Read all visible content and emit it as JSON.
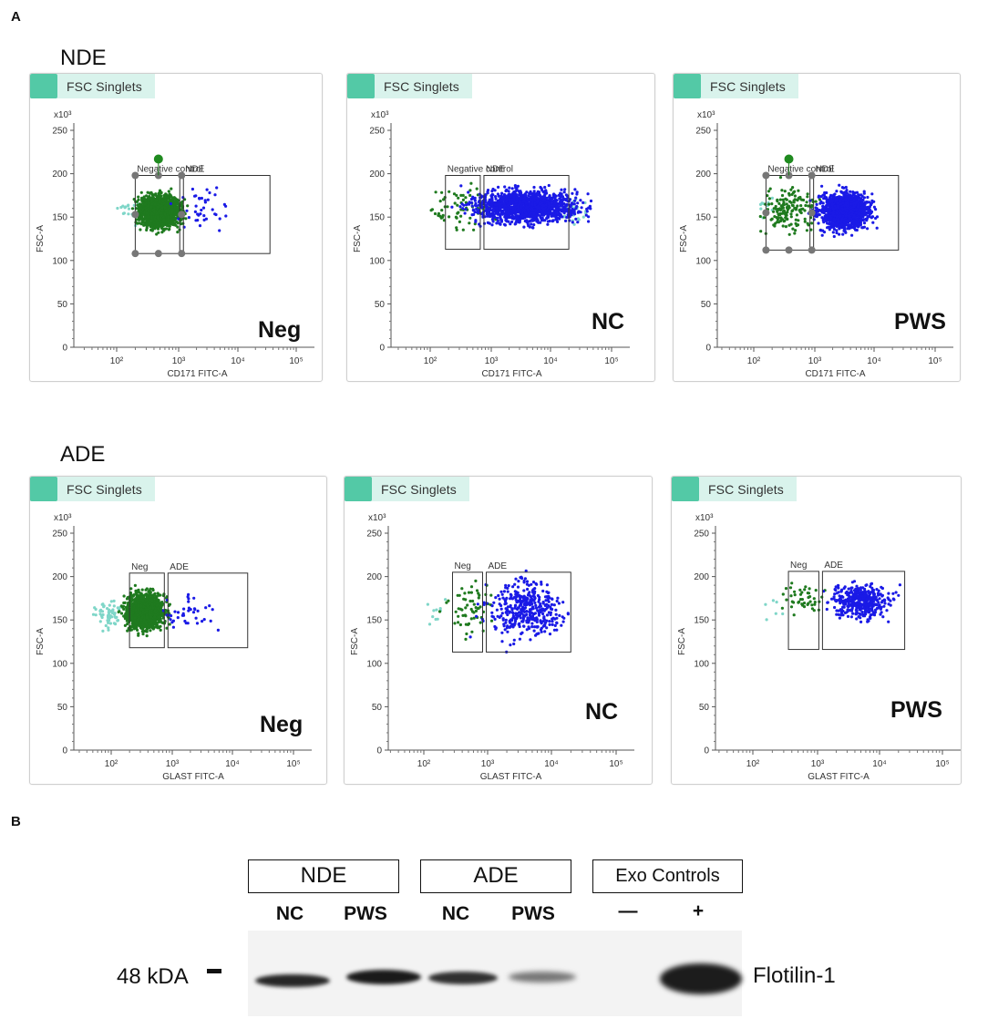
{
  "panel_a": {
    "letter": "A",
    "plot_header": "FSC Singlets",
    "y_axis_label": "FSC-A",
    "y_multiplier": "x10³",
    "y_ticks": [
      "0",
      "50",
      "100",
      "150",
      "200",
      "250"
    ],
    "x_ticks": [
      "10²",
      "10³",
      "10⁴",
      "10⁵"
    ],
    "rows": [
      {
        "title": "NDE",
        "x_axis_label": "CD171 FITC-A",
        "plots": [
          {
            "sample": "Neg",
            "gate_left": "Negative control",
            "gate_right": "NDE"
          },
          {
            "sample": "NC",
            "gate_left": "Negative control",
            "gate_right": "NDE"
          },
          {
            "sample": "PWS",
            "gate_left": "Negative control",
            "gate_right": "NDE"
          }
        ]
      },
      {
        "title": "ADE",
        "x_axis_label": "GLAST FITC-A",
        "plots": [
          {
            "sample": "Neg",
            "gate_left": "Neg",
            "gate_right": "ADE"
          },
          {
            "sample": "NC",
            "gate_left": "Neg",
            "gate_right": "ADE"
          },
          {
            "sample": "PWS",
            "gate_left": "Neg",
            "gate_right": "ADE"
          }
        ]
      }
    ],
    "colors": {
      "negative": "#1f7a1f",
      "positive": "#1a1ae6",
      "outlier": "#7fd6c8",
      "header_accent": "#53c9a6"
    }
  },
  "panel_b": {
    "letter": "B",
    "groups": [
      "NDE",
      "ADE",
      "Exo Controls"
    ],
    "lanes": [
      "NC",
      "PWS",
      "NC",
      "PWS",
      "—",
      "+"
    ],
    "marker": "48 kDA",
    "protein": "Flotilin-1"
  }
}
